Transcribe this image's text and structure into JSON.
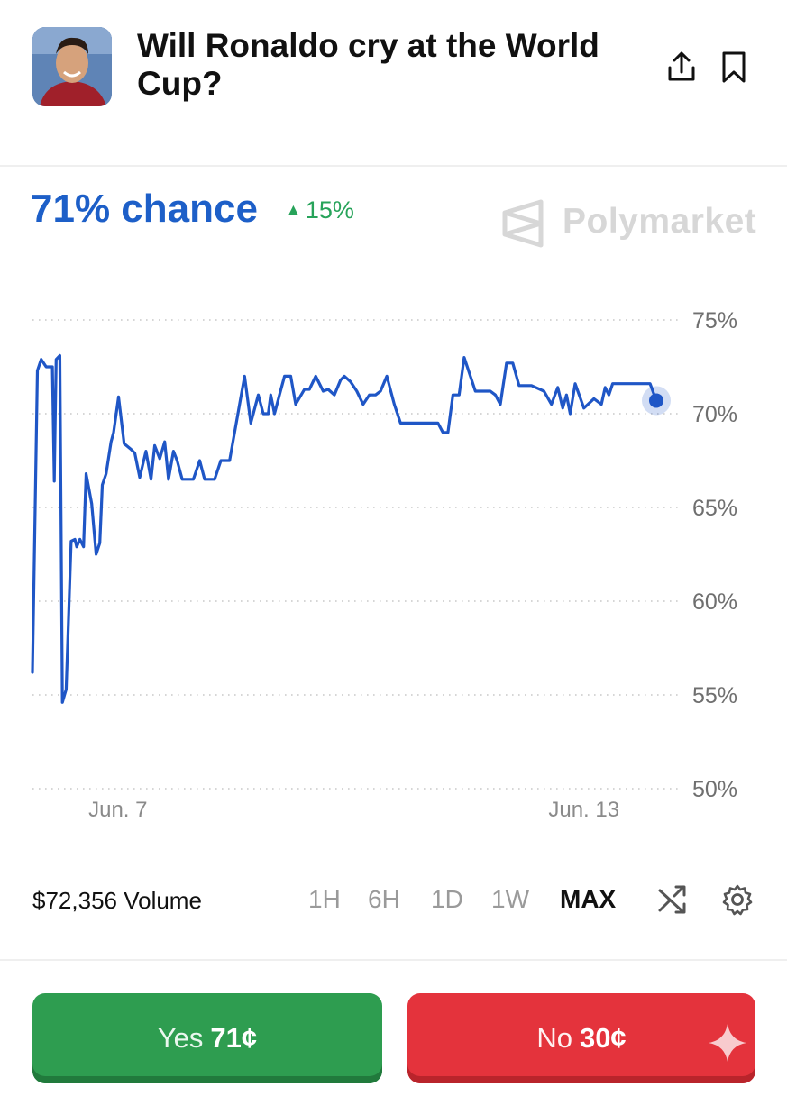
{
  "header": {
    "title": "Will Ronaldo cry at the World Cup?",
    "avatar_icon": "portrait-photo",
    "share_icon": "share-upload-icon",
    "bookmark_icon": "bookmark-icon"
  },
  "summary": {
    "chance_text": "71% chance",
    "change_text": "15%",
    "change_direction": "up",
    "brand": "Polymarket"
  },
  "chart_data": {
    "type": "line",
    "y_tick_labels": [
      "75%",
      "70%",
      "65%",
      "60%",
      "55%",
      "50%"
    ],
    "y_ticks": [
      75,
      70,
      65,
      60,
      55,
      50
    ],
    "ylim": [
      50,
      75
    ],
    "x_tick_labels": [
      "Jun. 7",
      "Jun. 13"
    ],
    "x_tick_positions": [
      0.137,
      0.884
    ],
    "grid": "dotted-horizontal",
    "line_color": "#1f56c6",
    "series": [
      {
        "values_x": [
          0,
          0.008,
          0.014,
          0.022,
          0.032,
          0.035,
          0.038,
          0.044,
          0.048,
          0.054,
          0.062,
          0.068,
          0.071,
          0.076,
          0.082,
          0.086,
          0.095,
          0.102,
          0.108,
          0.112,
          0.118,
          0.126,
          0.13,
          0.138,
          0.147,
          0.158,
          0.164,
          0.172,
          0.182,
          0.19,
          0.196,
          0.204,
          0.212,
          0.218,
          0.226,
          0.232,
          0.24,
          0.258,
          0.268,
          0.276,
          0.284,
          0.292,
          0.302,
          0.316,
          0.34,
          0.35,
          0.362,
          0.37,
          0.378,
          0.382,
          0.388,
          0.396,
          0.404,
          0.414,
          0.422,
          0.436,
          0.444,
          0.454,
          0.466,
          0.474,
          0.484,
          0.494,
          0.5,
          0.51,
          0.52,
          0.53,
          0.54,
          0.55,
          0.558,
          0.568,
          0.58,
          0.59,
          0.6,
          0.612,
          0.626,
          0.64,
          0.65,
          0.658,
          0.666,
          0.674,
          0.684,
          0.692,
          0.71,
          0.724,
          0.734,
          0.742,
          0.75,
          0.76,
          0.77,
          0.78,
          0.79,
          0.8,
          0.82,
          0.832,
          0.842,
          0.85,
          0.856,
          0.862,
          0.87,
          0.884,
          0.9,
          0.912,
          0.918,
          0.924,
          0.93,
          0.94,
          0.948,
          0.956,
          0.964,
          0.972,
          0.98,
          0.99,
          1.0
        ],
        "values_y": [
          56.2,
          72.3,
          72.9,
          72.5,
          72.5,
          66.4,
          72.9,
          73.1,
          54.6,
          55.3,
          63.2,
          63.3,
          62.9,
          63.3,
          62.9,
          66.8,
          65.2,
          62.5,
          63.1,
          66.2,
          66.8,
          68.5,
          69.0,
          70.9,
          68.4,
          68.1,
          67.9,
          66.6,
          68.0,
          66.5,
          68.3,
          67.6,
          68.5,
          66.5,
          68.0,
          67.5,
          66.5,
          66.5,
          67.5,
          66.5,
          66.5,
          66.5,
          67.5,
          67.5,
          72.0,
          69.5,
          71.0,
          70.0,
          70.0,
          71.0,
          70.0,
          71.0,
          72.0,
          72.0,
          70.5,
          71.3,
          71.3,
          72.0,
          71.2,
          71.3,
          71.0,
          71.8,
          72.0,
          71.7,
          71.2,
          70.5,
          71.0,
          71.0,
          71.2,
          72.0,
          70.5,
          69.5,
          69.5,
          69.5,
          69.5,
          69.5,
          69.5,
          69.0,
          69.0,
          71.0,
          71.0,
          73.0,
          71.2,
          71.2,
          71.2,
          71.0,
          70.5,
          72.7,
          72.7,
          71.5,
          71.5,
          71.5,
          71.2,
          70.5,
          71.4,
          70.3,
          71.0,
          70.0,
          71.6,
          70.3,
          70.8,
          70.5,
          71.4,
          71.0,
          71.6,
          71.6,
          71.6,
          71.6,
          71.6,
          71.6,
          71.6,
          71.6,
          70.7
        ]
      }
    ]
  },
  "stats": {
    "volume": "$72,356 Volume"
  },
  "time_ranges": [
    {
      "label": "1H",
      "active": false
    },
    {
      "label": "6H",
      "active": false
    },
    {
      "label": "1D",
      "active": false
    },
    {
      "label": "1W",
      "active": false
    },
    {
      "label": "MAX",
      "active": true
    }
  ],
  "tools": {
    "shuffle_icon": "shuffle-icon",
    "settings_icon": "gear-icon"
  },
  "actions": {
    "yes_label": "Yes",
    "yes_price": "71¢",
    "no_label": "No",
    "no_price": "30¢"
  }
}
